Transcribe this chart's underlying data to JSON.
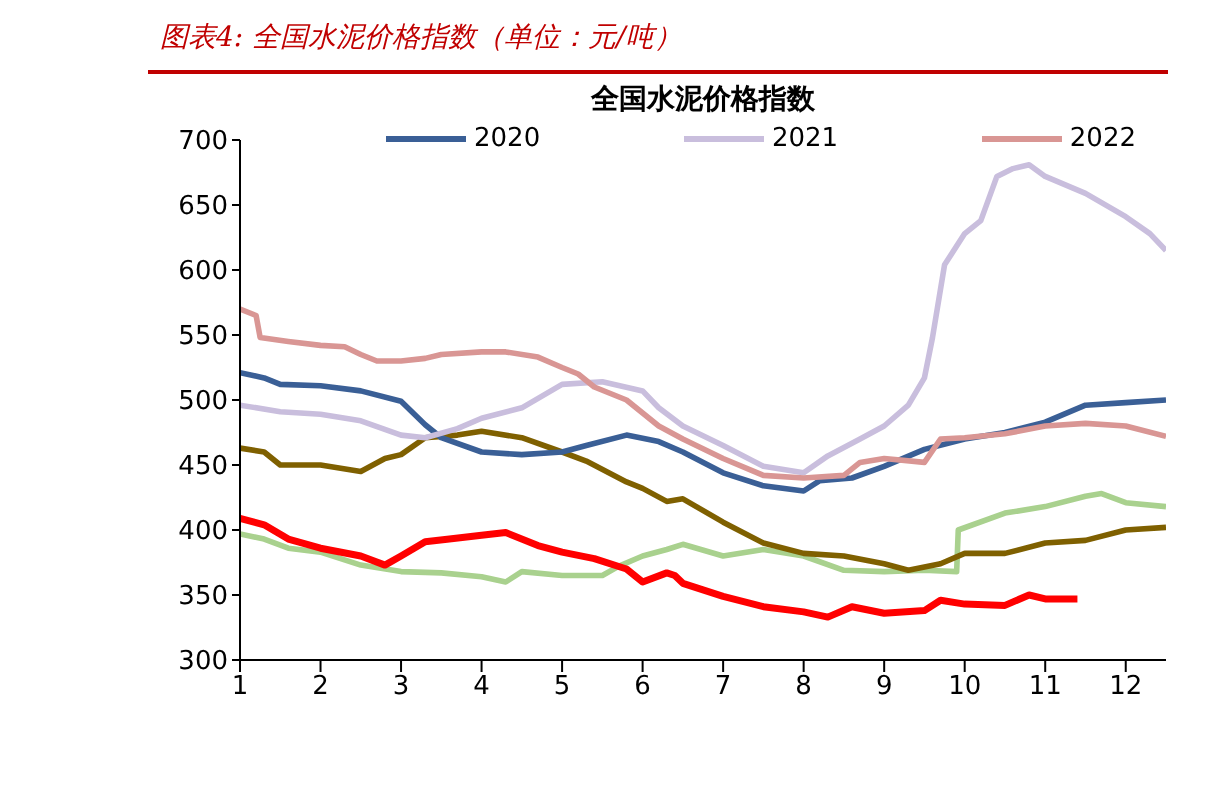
{
  "chart_data": {
    "type": "line",
    "title": "全国水泥价格指数",
    "annotations": [
      "图表4:  全国水泥价格指数（单位：元/吨）"
    ],
    "xlim": [
      1,
      12.5
    ],
    "xticks": [
      1,
      2,
      3,
      4,
      5,
      6,
      7,
      8,
      9,
      10,
      11,
      12
    ],
    "ylim": [
      300,
      700
    ],
    "yticks": [
      300,
      350,
      400,
      450,
      500,
      550,
      600,
      650,
      700
    ],
    "grid": false,
    "legend": "top",
    "marker": "none",
    "line_style": "solid",
    "series": [
      {
        "color": "#a9d18e",
        "x": [
          1,
          1.3,
          1.6,
          2,
          2.5,
          3,
          3.5,
          4,
          4.3,
          4.5,
          5,
          5.5,
          5.7,
          6,
          6.3,
          6.5,
          7,
          7.5,
          8,
          8.5,
          9,
          9.5,
          9.9,
          9.92,
          10.5,
          11,
          11.5,
          11.7,
          12,
          12.5
        ],
        "values": [
          397,
          393,
          386,
          383,
          373,
          368,
          367,
          364,
          360,
          368,
          365,
          365,
          372,
          380,
          385,
          389,
          380,
          385,
          380,
          369,
          368,
          369,
          368,
          400,
          413,
          418,
          426,
          428,
          421,
          418
        ]
      },
      {
        "color": "#7f6000",
        "x": [
          1,
          1.3,
          1.5,
          2,
          2.5,
          2.8,
          3,
          3.3,
          3.7,
          4,
          4.5,
          5,
          5.3,
          5.8,
          6,
          6.3,
          6.5,
          7,
          7.5,
          8,
          8.5,
          9,
          9.3,
          9.7,
          10,
          10.5,
          11,
          11.5,
          12,
          12.5
        ],
        "values": [
          463,
          460,
          450,
          450,
          445,
          455,
          458,
          471,
          473,
          476,
          471,
          460,
          453,
          437,
          432,
          422,
          424,
          406,
          390,
          382,
          380,
          374,
          369,
          374,
          382,
          382,
          390,
          392,
          400,
          402
        ]
      },
      {
        "color": "#ff0000",
        "x": [
          1,
          1.3,
          1.6,
          2,
          2.5,
          2.8,
          3,
          3.3,
          3.6,
          4,
          4.3,
          4.7,
          5,
          5.4,
          5.8,
          6,
          6.3,
          6.4,
          6.5,
          7,
          7.5,
          8,
          8.3,
          8.6,
          9,
          9.5,
          9.7,
          10,
          10.5,
          10.8,
          11,
          11.4
        ],
        "values": [
          409,
          404,
          393,
          386,
          380,
          373,
          380,
          391,
          393,
          396,
          398,
          388,
          383,
          378,
          370,
          360,
          367,
          365,
          359,
          349,
          341,
          337,
          333,
          341,
          336,
          338,
          346,
          343,
          342,
          350,
          347,
          347
        ]
      },
      {
        "name": "2020",
        "color": "#3a5f96",
        "x": [
          1,
          1.3,
          1.5,
          2,
          2.5,
          3,
          3.3,
          3.5,
          4,
          4.5,
          5,
          5.3,
          5.8,
          6.2,
          6.5,
          7,
          7.5,
          8,
          8.2,
          8.6,
          9,
          9.5,
          10,
          10.5,
          11,
          11.5,
          12,
          12.5
        ],
        "values": [
          521,
          517,
          512,
          511,
          507,
          499,
          481,
          471,
          460,
          458,
          460,
          465,
          473,
          468,
          460,
          444,
          434,
          430,
          438,
          440,
          449,
          462,
          470,
          475,
          483,
          496,
          498,
          500
        ]
      },
      {
        "name": "2021",
        "color": "#c9bedd",
        "x": [
          1,
          1.5,
          2,
          2.5,
          3,
          3.3,
          3.7,
          4,
          4.5,
          5,
          5.5,
          6,
          6.2,
          6.5,
          7,
          7.5,
          8,
          8.3,
          8.7,
          9,
          9.3,
          9.5,
          9.6,
          9.75,
          10,
          10.2,
          10.4,
          10.6,
          10.8,
          11,
          11.5,
          12,
          12.3,
          12.5
        ],
        "values": [
          496,
          491,
          489,
          484,
          473,
          471,
          478,
          486,
          494,
          512,
          514,
          507,
          494,
          480,
          465,
          449,
          444,
          457,
          470,
          480,
          496,
          517,
          548,
          604,
          628,
          638,
          672,
          678,
          681,
          672,
          659,
          641,
          628,
          615
        ]
      },
      {
        "name": "2022",
        "color": "#d99694",
        "x": [
          1,
          1.2,
          1.25,
          1.6,
          2,
          2.3,
          2.5,
          2.7,
          3,
          3.3,
          3.5,
          4,
          4.3,
          4.7,
          5,
          5.2,
          5.4,
          5.8,
          6,
          6.2,
          6.5,
          7,
          7.5,
          8,
          8.5,
          8.7,
          9,
          9.5,
          9.7,
          10,
          10.5,
          11,
          11.5,
          12,
          12.5
        ],
        "values": [
          570,
          565,
          548,
          545,
          542,
          541,
          535,
          530,
          530,
          532,
          535,
          537,
          537,
          533,
          525,
          520,
          510,
          500,
          490,
          480,
          470,
          455,
          442,
          440,
          442,
          452,
          455,
          452,
          470,
          471,
          474,
          480,
          482,
          480,
          472
        ]
      }
    ]
  }
}
